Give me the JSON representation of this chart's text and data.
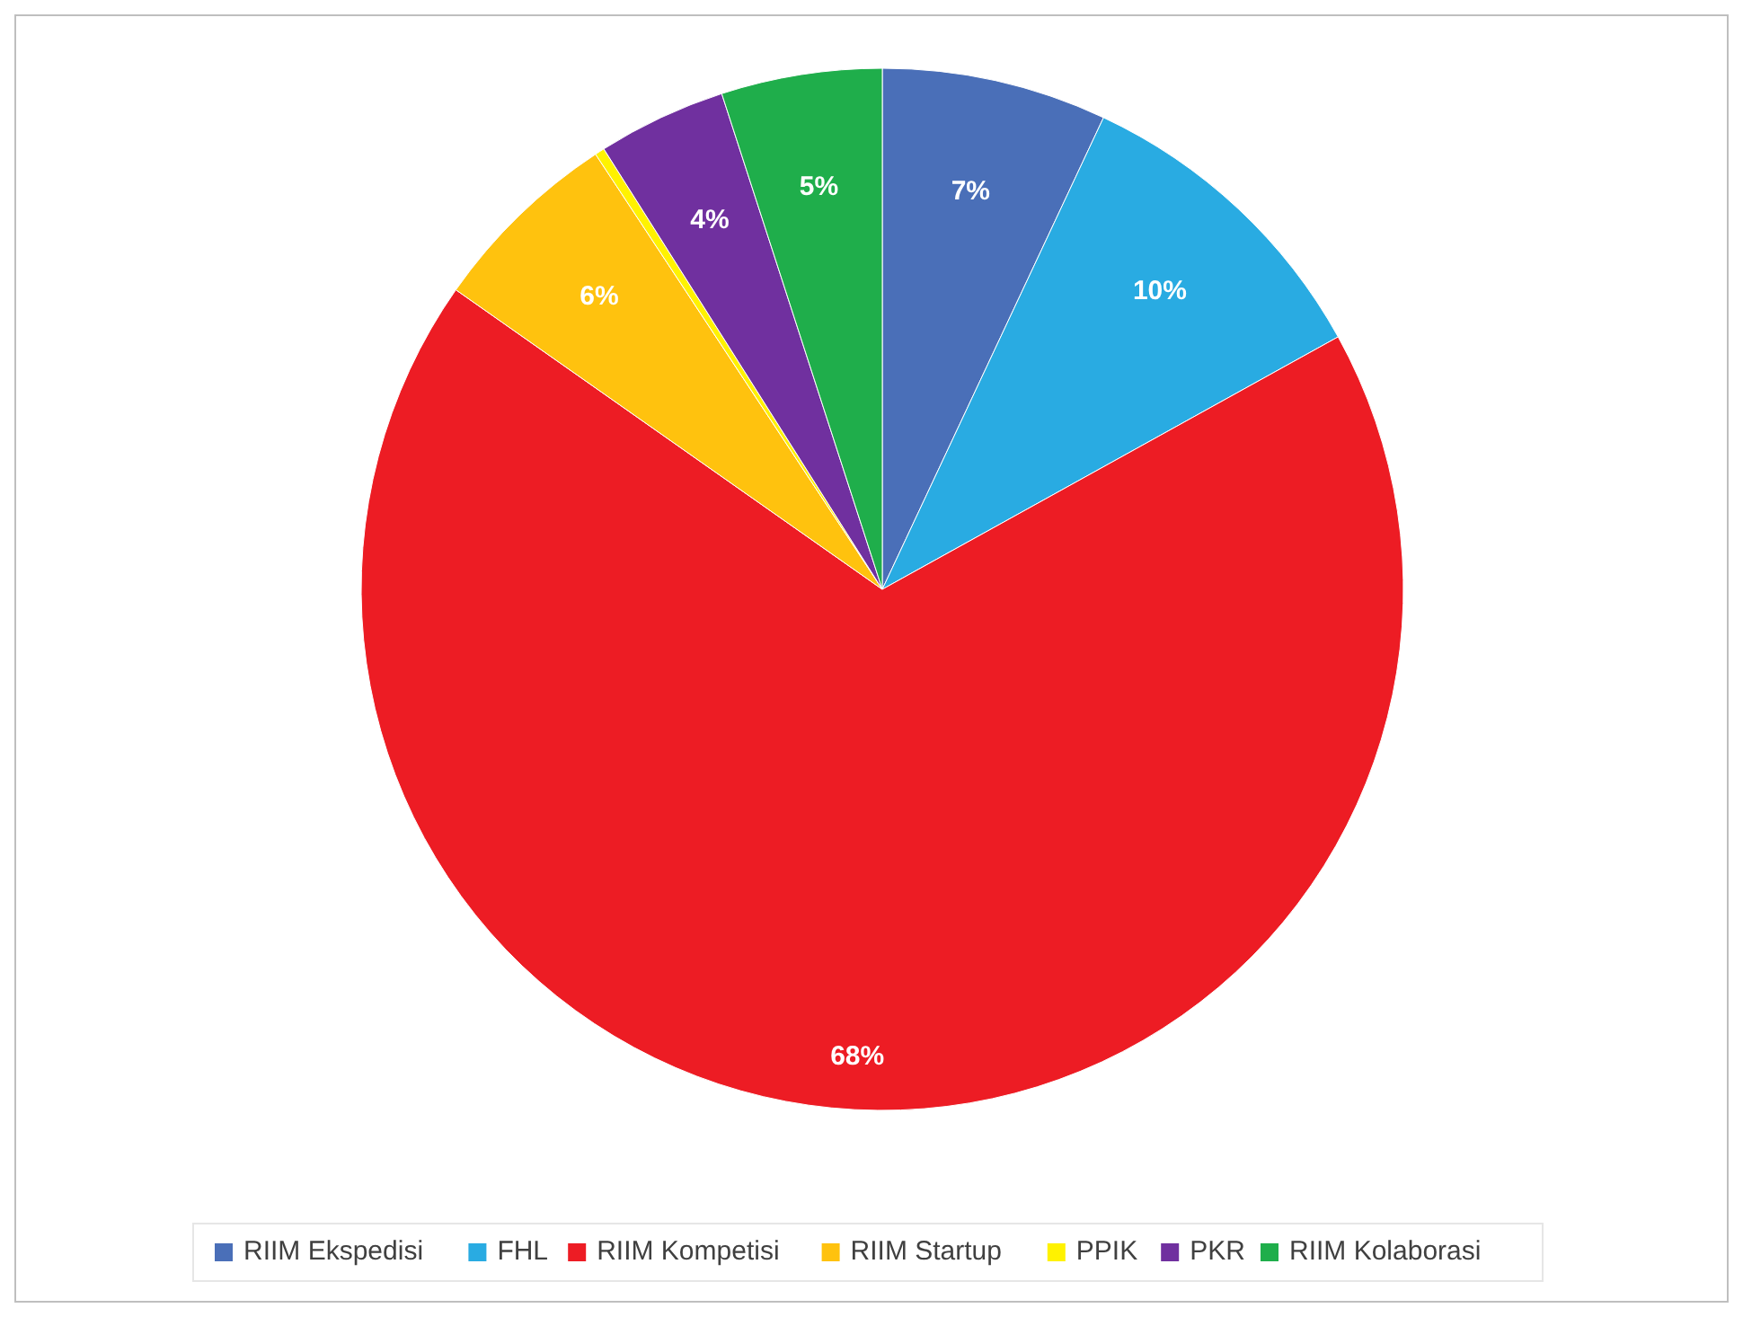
{
  "chart_data": {
    "type": "pie",
    "categories": [
      "RIIM Ekspedisi",
      "FHL",
      "RIIM Kompetisi",
      "RIIM Startup",
      "PPIK",
      "PKR",
      "RIIM Kolaborasi"
    ],
    "values": [
      7,
      10,
      68,
      6,
      0.3,
      4,
      5
    ],
    "colors": [
      "#4a6fb8",
      "#29abe2",
      "#ed1c24",
      "#ffc20e",
      "#fff200",
      "#70309f",
      "#1fae4b"
    ],
    "value_labels": [
      "7%",
      "10%",
      "68%",
      "6%",
      null,
      "4%",
      "5%"
    ],
    "legend": "bottom"
  }
}
